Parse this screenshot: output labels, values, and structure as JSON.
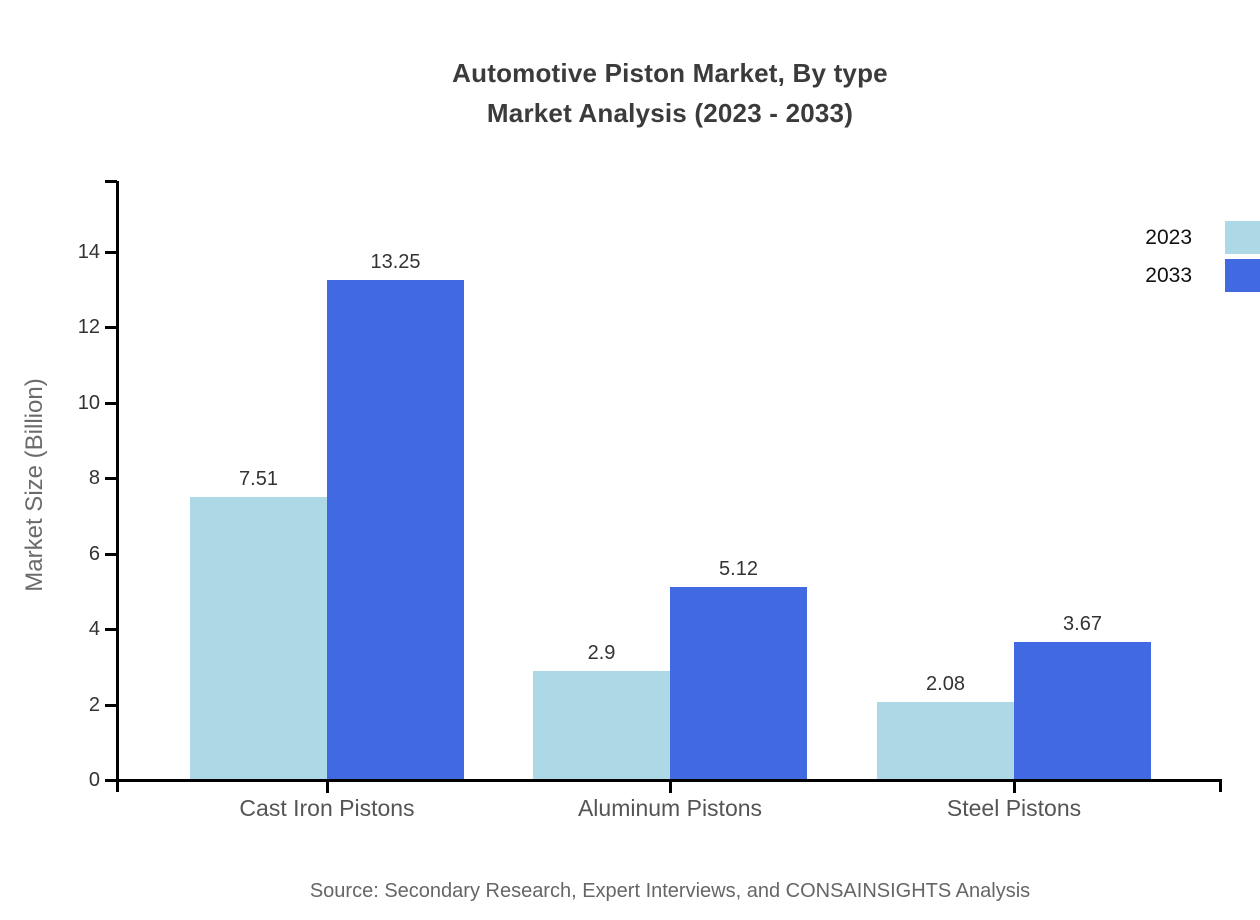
{
  "title": {
    "line1": "Automotive Piston Market, By type",
    "line2": "Market Analysis (2023 - 2033)"
  },
  "source": "Source: Secondary Research, Expert Interviews, and CONSAINSIGHTS Analysis",
  "chart_data": {
    "type": "bar",
    "categories": [
      "Cast Iron Pistons",
      "Aluminum Pistons",
      "Steel Pistons"
    ],
    "series": [
      {
        "name": "2023",
        "color": "#add8e6",
        "values": [
          7.51,
          2.9,
          2.08
        ]
      },
      {
        "name": "2033",
        "color": "#4169e1",
        "values": [
          13.25,
          5.12,
          3.67
        ]
      }
    ],
    "title": "Automotive Piston Market, By type Market Analysis (2023 - 2033)",
    "xlabel": "",
    "ylabel": "Market Size (Billion)",
    "yticks": [
      0,
      2,
      4,
      6,
      8,
      10,
      12,
      14
    ],
    "ylim": [
      0,
      15.9
    ],
    "grid": false,
    "legend_position": "top-right",
    "value_labels_shown": true,
    "axis_color": "#000000"
  }
}
